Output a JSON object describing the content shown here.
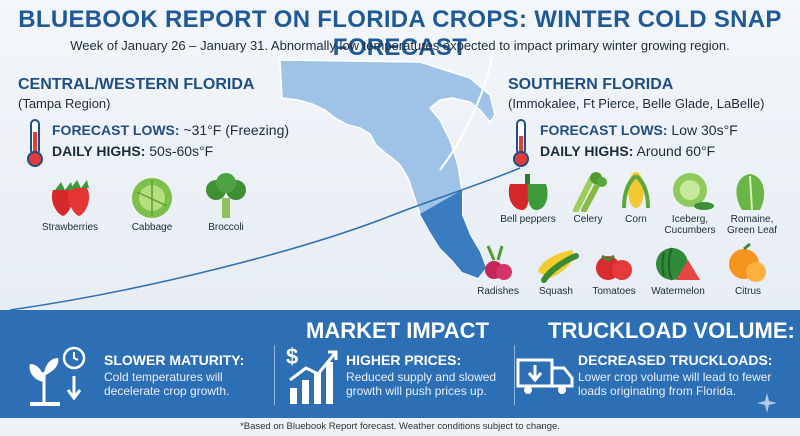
{
  "header": {
    "title": "BLUEBOOK REPORT ON FLORIDA CROPS: WINTER COLD SNAP FORECAST",
    "subtitle": "Week of January 26 – January 31. Abnormally low temperatures expected to impact primary winter growing region."
  },
  "central": {
    "title": "CENTRAL/WESTERN FLORIDA",
    "sub": "(Tampa Region)",
    "lows_label": "FORECAST LOWS:",
    "lows_value": " ~31°F (Freezing)",
    "highs_label": "DAILY HIGHS:",
    "highs_value": " 50s-60s°F",
    "crops": [
      {
        "label": "Strawberries",
        "icon": "strawberry-icon"
      },
      {
        "label": "Cabbage",
        "icon": "cabbage-icon"
      },
      {
        "label": "Broccoli",
        "icon": "broccoli-icon"
      }
    ]
  },
  "southern": {
    "title": "SOUTHERN FLORIDA",
    "sub": "(Immokalee, Ft Pierce, Belle Glade, LaBelle)",
    "lows_label": "FORECAST LOWS:",
    "lows_value": " Low 30s°F",
    "highs_label": "DAILY HIGHS:",
    "highs_value": " Around 60°F",
    "crops_row1": [
      {
        "label": "Bell peppers",
        "icon": "bell-pepper-icon"
      },
      {
        "label": "Celery",
        "icon": "celery-icon"
      },
      {
        "label": "Corn",
        "icon": "corn-icon"
      },
      {
        "label": "Iceberg, Cucumbers",
        "icon": "iceberg-lettuce-icon"
      },
      {
        "label": "Romaine, Green Leaf",
        "icon": "romaine-icon"
      }
    ],
    "crops_row2": [
      {
        "label": "Radishes",
        "icon": "radish-icon"
      },
      {
        "label": "Squash",
        "icon": "squash-icon"
      },
      {
        "label": "Tomatoes",
        "icon": "tomato-icon"
      },
      {
        "label": "Watermelon",
        "icon": "watermelon-icon"
      },
      {
        "label": "Citrus",
        "icon": "citrus-icon"
      }
    ]
  },
  "impact": {
    "market_heading": "MARKET IMPACT",
    "truck_heading": "TRUCKLOAD VOLUME:",
    "items": [
      {
        "title": "SLOWER MATURITY:",
        "text": "Cold temperatures will decelerate crop growth.",
        "icon": "plant-clock-icon"
      },
      {
        "title": "HIGHER PRICES:",
        "text": "Reduced supply and slowed growth will push prices up.",
        "icon": "price-chart-icon"
      },
      {
        "title": "DECREASED TRUCKLOADS:",
        "text": "Lower crop volume will lead to fewer loads originating from Florida.",
        "icon": "truck-icon"
      }
    ]
  },
  "footer": "*Based on Bluebook Report forecast. Weather conditions subject to change.",
  "colors": {
    "brand": "#1f5a96",
    "band": "#2d6fb4",
    "map": "#9ec3e6",
    "map_south": "#3a7cc0"
  }
}
